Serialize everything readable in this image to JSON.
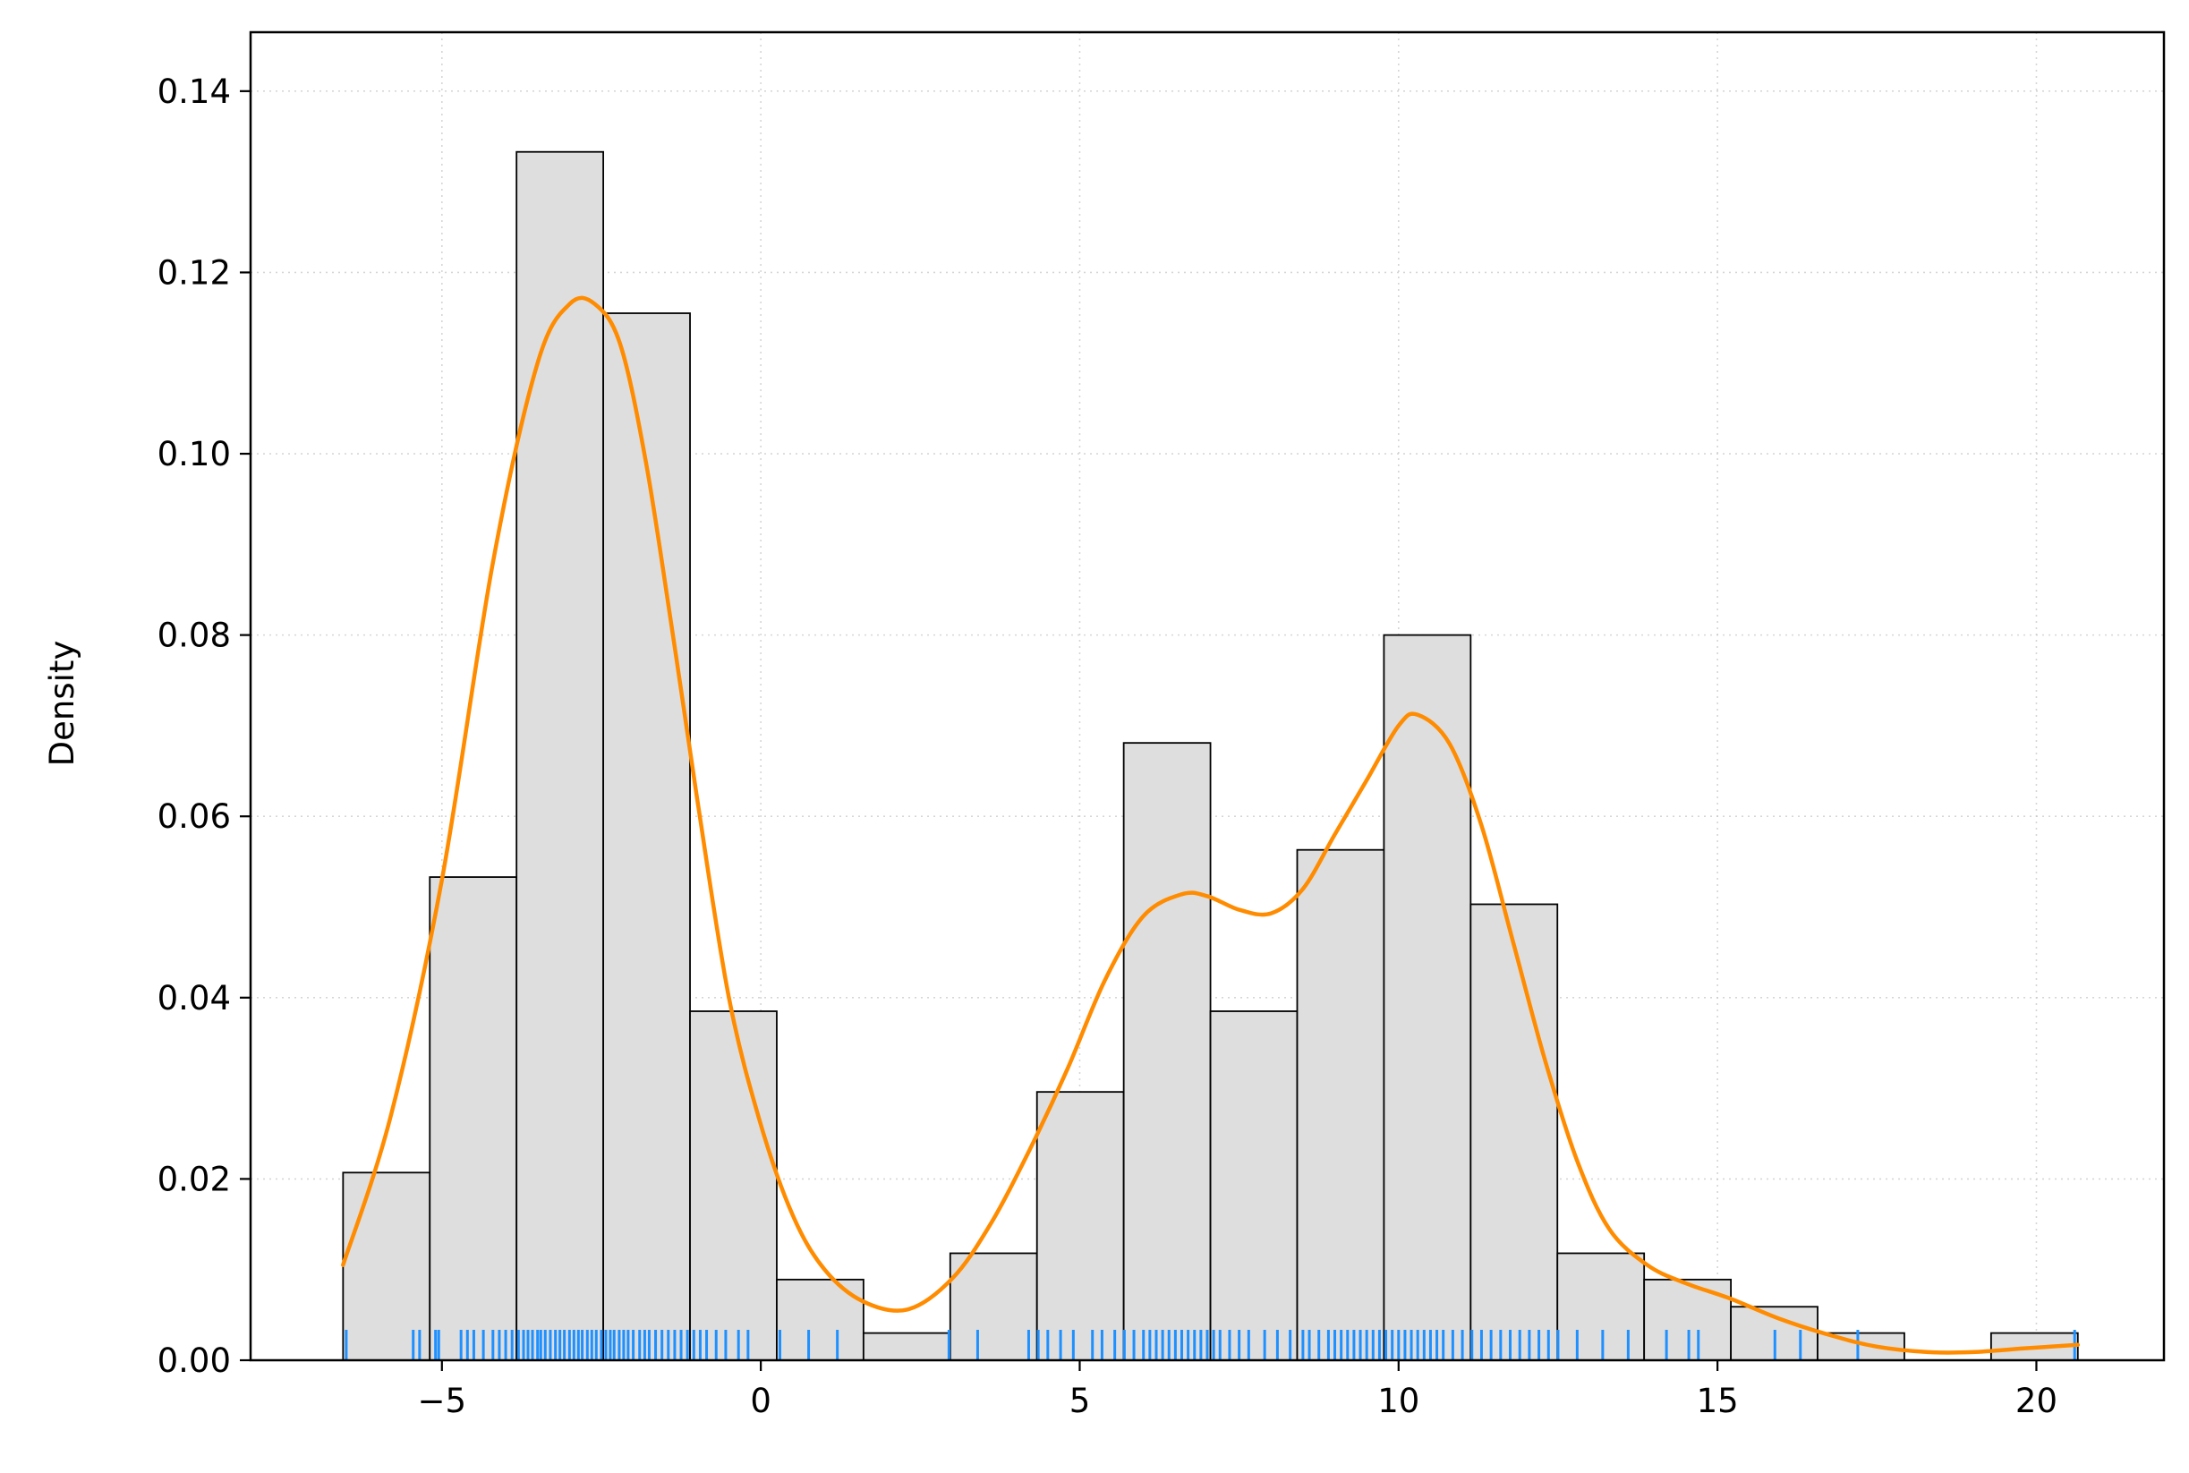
{
  "chart_data": {
    "type": "bar",
    "xlabel": "",
    "ylabel": "Density",
    "xlim": [
      -8.0,
      22.0
    ],
    "ylim": [
      0.0,
      0.1465
    ],
    "x_ticks": [
      {
        "value": -5,
        "label": "−5"
      },
      {
        "value": 0,
        "label": "0"
      },
      {
        "value": 5,
        "label": "5"
      },
      {
        "value": 10,
        "label": "10"
      },
      {
        "value": 15,
        "label": "15"
      },
      {
        "value": 20,
        "label": "20"
      }
    ],
    "y_ticks": [
      {
        "value": 0.0,
        "label": "0.00"
      },
      {
        "value": 0.02,
        "label": "0.02"
      },
      {
        "value": 0.04,
        "label": "0.04"
      },
      {
        "value": 0.06,
        "label": "0.06"
      },
      {
        "value": 0.08,
        "label": "0.08"
      },
      {
        "value": 0.1,
        "label": "0.10"
      },
      {
        "value": 0.12,
        "label": "0.12"
      },
      {
        "value": 0.14,
        "label": "0.14"
      }
    ],
    "grid": true,
    "histogram": {
      "bin_edges": [
        -6.55,
        -5.19,
        -3.83,
        -2.47,
        -1.11,
        0.25,
        1.61,
        2.97,
        4.33,
        5.69,
        7.05,
        8.41,
        9.77,
        11.13,
        12.49,
        13.85,
        15.21,
        16.57,
        17.93,
        19.29,
        20.65
      ],
      "densities": [
        0.0207,
        0.0533,
        0.1333,
        0.1155,
        0.0385,
        0.0089,
        0.003,
        0.0118,
        0.0296,
        0.0681,
        0.0385,
        0.0563,
        0.08,
        0.0503,
        0.0118,
        0.0089,
        0.0059,
        0.003,
        0.0,
        0.003
      ],
      "fill": "#dedede",
      "edge": "#000000"
    },
    "kde": {
      "color": "#ff8c00",
      "x": [
        -6.55,
        -5.8,
        -5.0,
        -4.2,
        -3.5,
        -3.0,
        -2.6,
        -2.2,
        -1.8,
        -1.4,
        -1.0,
        -0.5,
        0.0,
        0.5,
        1.0,
        1.6,
        2.3,
        3.0,
        3.6,
        4.2,
        4.8,
        5.4,
        6.0,
        6.6,
        7.0,
        7.5,
        8.0,
        8.5,
        9.0,
        9.5,
        10.0,
        10.3,
        10.8,
        11.3,
        11.8,
        12.3,
        12.8,
        13.3,
        13.9,
        14.5,
        15.2,
        16.0,
        16.8,
        17.5,
        18.3,
        19.0,
        19.8,
        20.65
      ],
      "y": [
        0.0105,
        0.027,
        0.053,
        0.088,
        0.11,
        0.1165,
        0.1165,
        0.112,
        0.099,
        0.081,
        0.062,
        0.04,
        0.026,
        0.016,
        0.01,
        0.0065,
        0.0056,
        0.009,
        0.015,
        0.023,
        0.032,
        0.042,
        0.049,
        0.0514,
        0.0512,
        0.0497,
        0.0493,
        0.052,
        0.058,
        0.064,
        0.07,
        0.0712,
        0.068,
        0.059,
        0.046,
        0.033,
        0.022,
        0.0145,
        0.0105,
        0.0085,
        0.0068,
        0.0045,
        0.0027,
        0.0015,
        0.0009,
        0.0009,
        0.0013,
        0.0017
      ]
    },
    "rug": {
      "color": "#1e90ff",
      "values": [
        -6.5,
        -5.45,
        -5.35,
        -5.1,
        -5.05,
        -4.7,
        -4.6,
        -4.5,
        -4.35,
        -4.2,
        -4.1,
        -4.0,
        -3.9,
        -3.8,
        -3.72,
        -3.65,
        -3.58,
        -3.5,
        -3.45,
        -3.38,
        -3.3,
        -3.22,
        -3.15,
        -3.08,
        -3.0,
        -2.93,
        -2.86,
        -2.8,
        -2.72,
        -2.65,
        -2.58,
        -2.5,
        -2.43,
        -2.36,
        -2.3,
        -2.22,
        -2.15,
        -2.08,
        -2.0,
        -1.9,
        -1.82,
        -1.75,
        -1.65,
        -1.55,
        -1.45,
        -1.35,
        -1.25,
        -1.15,
        -1.05,
        -0.95,
        -0.85,
        -0.7,
        -0.55,
        -0.35,
        -0.2,
        0.3,
        0.75,
        1.2,
        2.95,
        3.4,
        4.2,
        4.35,
        4.5,
        4.7,
        4.9,
        5.2,
        5.35,
        5.55,
        5.7,
        5.85,
        6.0,
        6.1,
        6.2,
        6.3,
        6.4,
        6.5,
        6.6,
        6.7,
        6.8,
        6.9,
        7.0,
        7.1,
        7.2,
        7.35,
        7.5,
        7.65,
        7.9,
        8.1,
        8.3,
        8.5,
        8.6,
        8.75,
        8.9,
        9.0,
        9.1,
        9.2,
        9.3,
        9.4,
        9.5,
        9.6,
        9.7,
        9.8,
        9.9,
        10.0,
        10.1,
        10.2,
        10.3,
        10.4,
        10.5,
        10.6,
        10.7,
        10.85,
        11.0,
        11.15,
        11.3,
        11.45,
        11.6,
        11.75,
        11.9,
        12.05,
        12.2,
        12.35,
        12.5,
        12.8,
        13.2,
        13.6,
        14.2,
        14.55,
        14.7,
        15.9,
        16.3,
        17.2,
        20.6
      ]
    }
  }
}
